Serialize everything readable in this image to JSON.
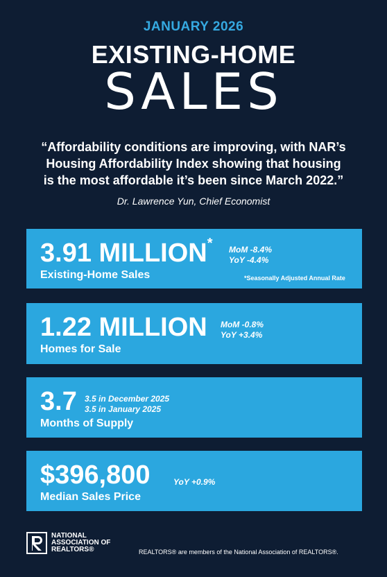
{
  "header": {
    "date": "JANUARY 2026",
    "title_line1": "EXISTING-HOME",
    "title_line2": "SALES"
  },
  "quote": {
    "lines": [
      "“Affordability conditions are improving, with NAR’s",
      "Housing Affordability Index showing that housing",
      "is the most affordable it’s been since March 2022.”"
    ],
    "author": "Dr. Lawrence Yun, Chief Economist"
  },
  "cards": [
    {
      "value": "3.91 MILLION",
      "marker": "*",
      "label": "Existing-Home Sales",
      "notes": [
        "MoM -8.4%",
        "YoY -4.4%"
      ],
      "footnote": "*Seasonally Adjusted Annual Rate"
    },
    {
      "value": "1.22 MILLION",
      "label": "Homes for Sale",
      "notes": [
        "MoM -0.8%",
        "YoY +3.4%"
      ]
    },
    {
      "value": "3.7",
      "label": "Months of Supply",
      "notes": [
        "3.5 in December 2025",
        "3.5 in January 2025"
      ]
    },
    {
      "value": "$396,800",
      "label": "Median Sales Price",
      "notes": [
        "YoY +0.9%"
      ]
    }
  ],
  "footer": {
    "logo_lines": [
      "NATIONAL",
      "ASSOCIATION OF",
      "REALTORS®"
    ],
    "disclaimer": "REALTORS® are members of the National Association of REALTORS®."
  }
}
